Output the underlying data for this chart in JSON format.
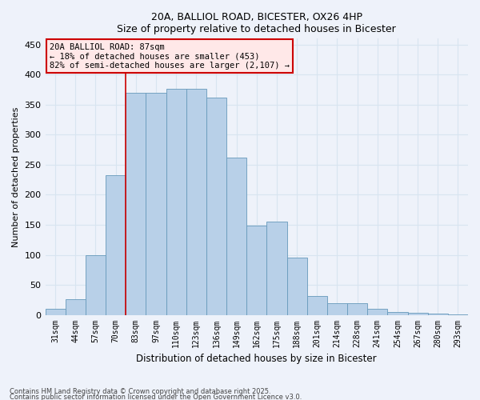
{
  "title_line1": "20A, BALLIOL ROAD, BICESTER, OX26 4HP",
  "title_line2": "Size of property relative to detached houses in Bicester",
  "xlabel": "Distribution of detached houses by size in Bicester",
  "ylabel": "Number of detached properties",
  "bar_labels": [
    "31sqm",
    "44sqm",
    "57sqm",
    "70sqm",
    "83sqm",
    "97sqm",
    "110sqm",
    "123sqm",
    "136sqm",
    "149sqm",
    "162sqm",
    "175sqm",
    "188sqm",
    "201sqm",
    "214sqm",
    "228sqm",
    "241sqm",
    "254sqm",
    "267sqm",
    "280sqm",
    "293sqm"
  ],
  "bar_heights": [
    10,
    26,
    100,
    232,
    370,
    370,
    376,
    376,
    362,
    262,
    148,
    155,
    96,
    32,
    20,
    20,
    10,
    5,
    3,
    2,
    1
  ],
  "bar_color": "#b8d0e8",
  "bar_edge_color": "#6699bb",
  "background_color": "#eef2fa",
  "grid_color": "#d8e4f0",
  "annotation_text": "20A BALLIOL ROAD: 87sqm\n← 18% of detached houses are smaller (453)\n82% of semi-detached houses are larger (2,107) →",
  "annotation_box_color": "#ffe8e8",
  "annotation_box_edge": "#cc0000",
  "marker_line_color": "#cc0000",
  "ylim": [
    0,
    460
  ],
  "yticks": [
    0,
    50,
    100,
    150,
    200,
    250,
    300,
    350,
    400,
    450
  ],
  "footnote1": "Contains HM Land Registry data © Crown copyright and database right 2025.",
  "footnote2": "Contains public sector information licensed under the Open Government Licence v3.0."
}
